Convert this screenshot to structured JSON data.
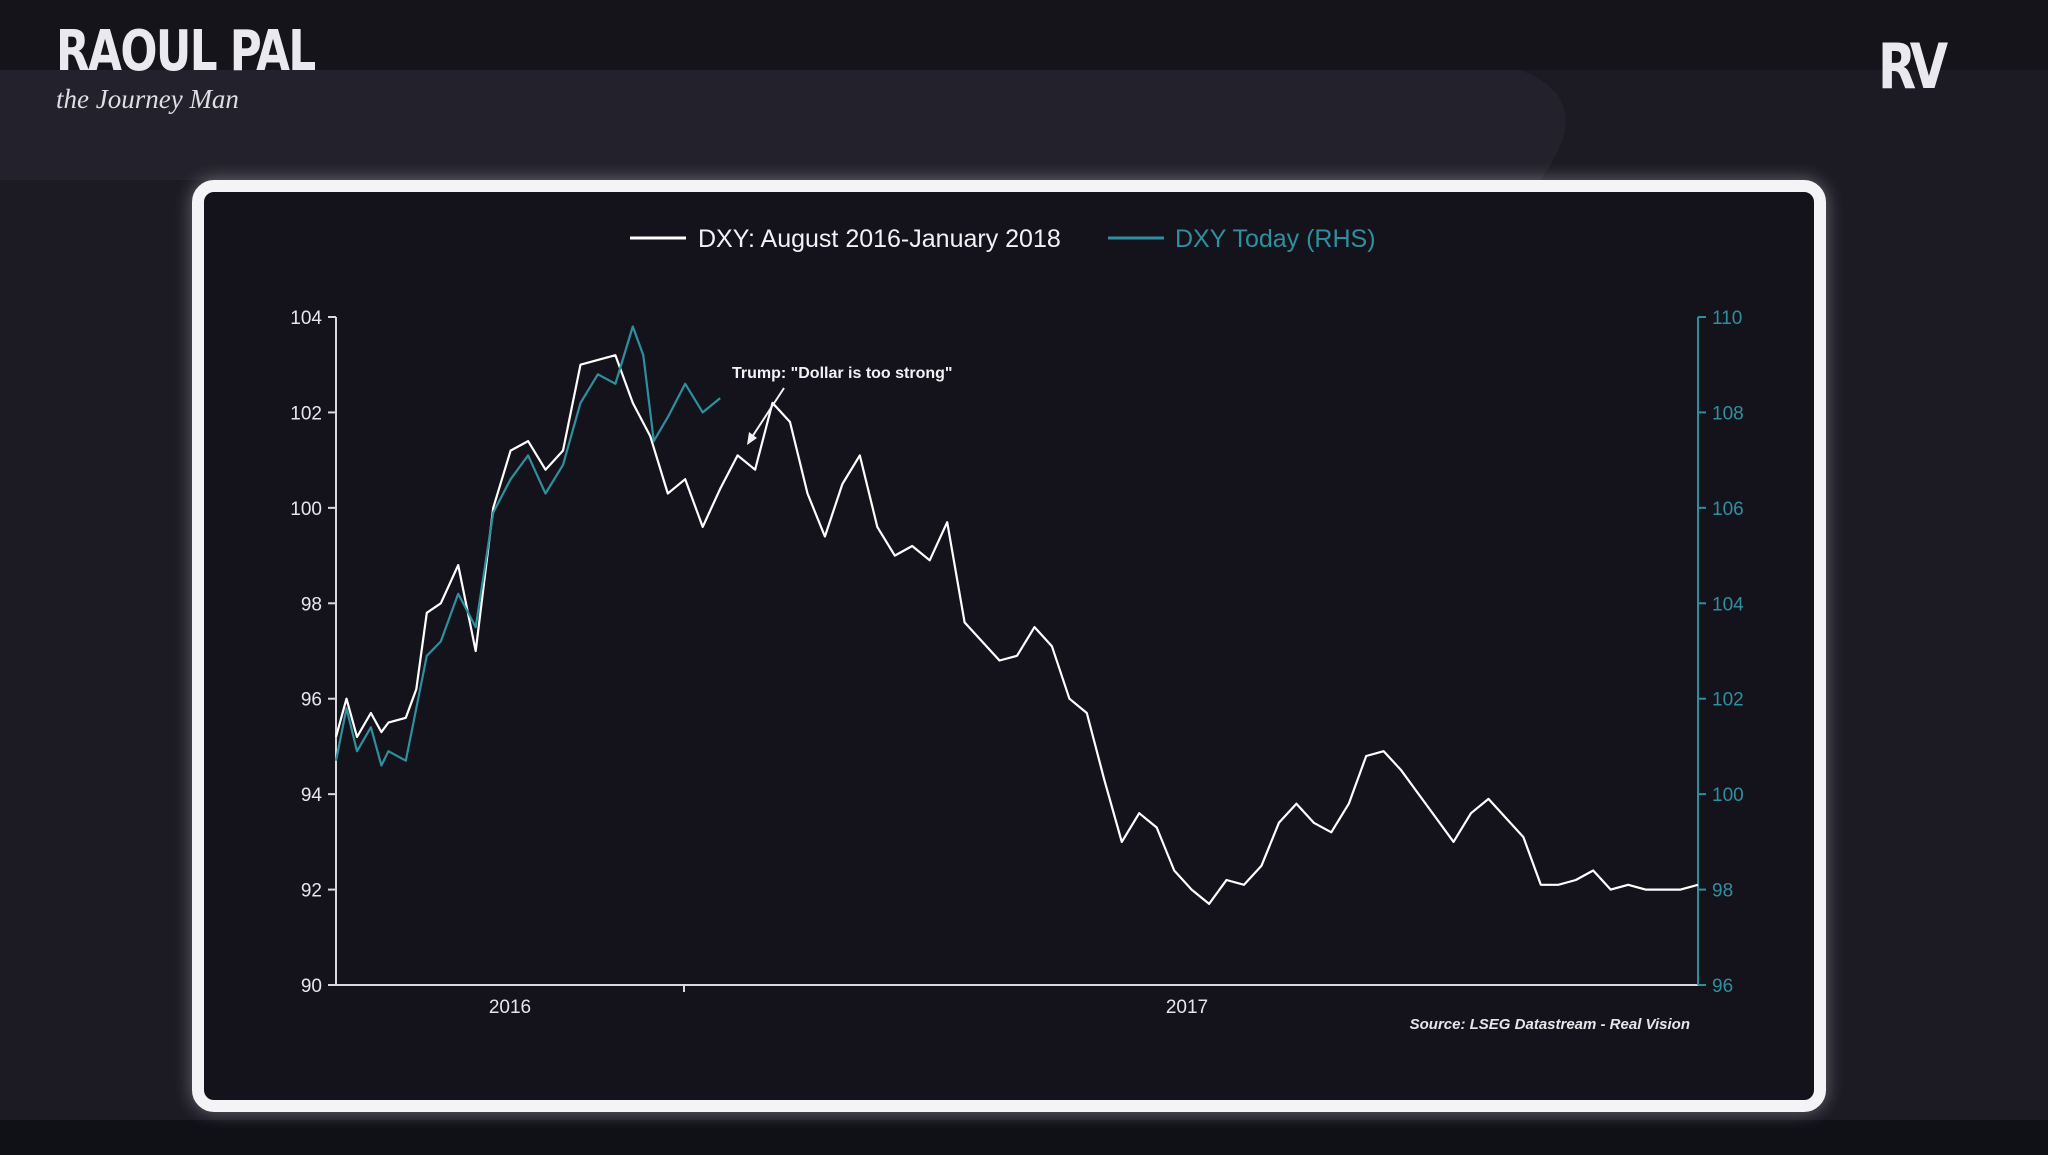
{
  "brand": {
    "name": "RAOUL PAL",
    "tagline": "the Journey Man",
    "logo": "RV"
  },
  "colors": {
    "background": "#1c1b24",
    "chart_bg": "#14131c",
    "primary_series": "#ffffff",
    "secondary_series": "#2f8f9e"
  },
  "chart_data": {
    "type": "line",
    "legend": [
      {
        "label": "DXY: August 2016-January 2018",
        "color": "#ffffff"
      },
      {
        "label": "DXY Today (RHS)",
        "color": "#2f8f9e"
      }
    ],
    "legend_position": "top-center",
    "y_left": {
      "ticks": [
        "104",
        "102",
        "100",
        "98",
        "96",
        "94",
        "92",
        "90"
      ],
      "range": [
        90,
        104
      ]
    },
    "y_right": {
      "ticks": [
        "110",
        "108",
        "106",
        "104",
        "102",
        "100",
        "98",
        "96"
      ],
      "range": [
        96,
        110
      ]
    },
    "x_tick_labels": [
      "2016",
      "2017"
    ],
    "annotation": "Trump: \"Dollar is too strong\"",
    "source": "Source: LSEG Datastream - Real Vision",
    "grid": false,
    "series": [
      {
        "name": "DXY: August 2016-January 2018",
        "axis": "left",
        "color": "#ffffff",
        "x": [
          0,
          0.6,
          1.2,
          2,
          2.6,
          3,
          4,
          4.6,
          5.2,
          6,
          7,
          8,
          9,
          10,
          11,
          12,
          13,
          14,
          15,
          16,
          17,
          18,
          19,
          20,
          21,
          22,
          23,
          24,
          25,
          26,
          27,
          28,
          29,
          30,
          31,
          32,
          33,
          34,
          35,
          36,
          37,
          38,
          39,
          40,
          41,
          42,
          43,
          44,
          45,
          46,
          47,
          48,
          49,
          50,
          51,
          52,
          53,
          54,
          55,
          56,
          57,
          58,
          59,
          60,
          61,
          62,
          63,
          64,
          65,
          66,
          67,
          68,
          69,
          70,
          71,
          72,
          73,
          74,
          75,
          76,
          77,
          78
        ],
        "values": [
          95.2,
          96.0,
          95.2,
          95.7,
          95.3,
          95.5,
          95.6,
          96.2,
          97.8,
          98.0,
          98.8,
          97.0,
          100.0,
          101.2,
          101.4,
          100.8,
          101.2,
          103.0,
          103.1,
          103.2,
          102.2,
          101.5,
          100.3,
          100.6,
          99.6,
          100.4,
          101.1,
          100.8,
          102.2,
          101.8,
          100.3,
          99.4,
          100.5,
          101.1,
          99.6,
          99.0,
          99.2,
          98.9,
          99.7,
          97.6,
          97.2,
          96.8,
          96.9,
          97.5,
          97.1,
          96.0,
          95.7,
          94.3,
          93.0,
          93.6,
          93.3,
          92.4,
          92.0,
          91.7,
          92.2,
          92.1,
          92.5,
          93.4,
          93.8,
          93.4,
          93.2,
          93.8,
          94.8,
          94.9,
          94.5,
          94.0,
          93.5,
          93.0,
          93.6,
          93.9,
          93.5,
          93.1,
          92.1,
          92.1,
          92.2,
          92.4,
          92.0,
          92.1,
          92.0,
          92.0,
          92.0,
          92.1
        ]
      },
      {
        "name": "DXY Today (RHS)",
        "axis": "right",
        "color": "#2f8f9e",
        "x": [
          0,
          0.6,
          1.2,
          2,
          2.6,
          3,
          4,
          4.6,
          5.2,
          6,
          7,
          8,
          9,
          10,
          11,
          12,
          13,
          14,
          15,
          16,
          17,
          17.6,
          18.2,
          19,
          20,
          21,
          22
        ],
        "values": [
          100.7,
          101.8,
          100.9,
          101.4,
          100.6,
          100.9,
          100.7,
          101.8,
          102.9,
          103.2,
          104.2,
          103.5,
          105.9,
          106.6,
          107.1,
          106.3,
          106.9,
          108.2,
          108.8,
          108.6,
          109.8,
          109.2,
          107.4,
          107.9,
          108.6,
          108.0,
          108.3
        ]
      }
    ]
  }
}
